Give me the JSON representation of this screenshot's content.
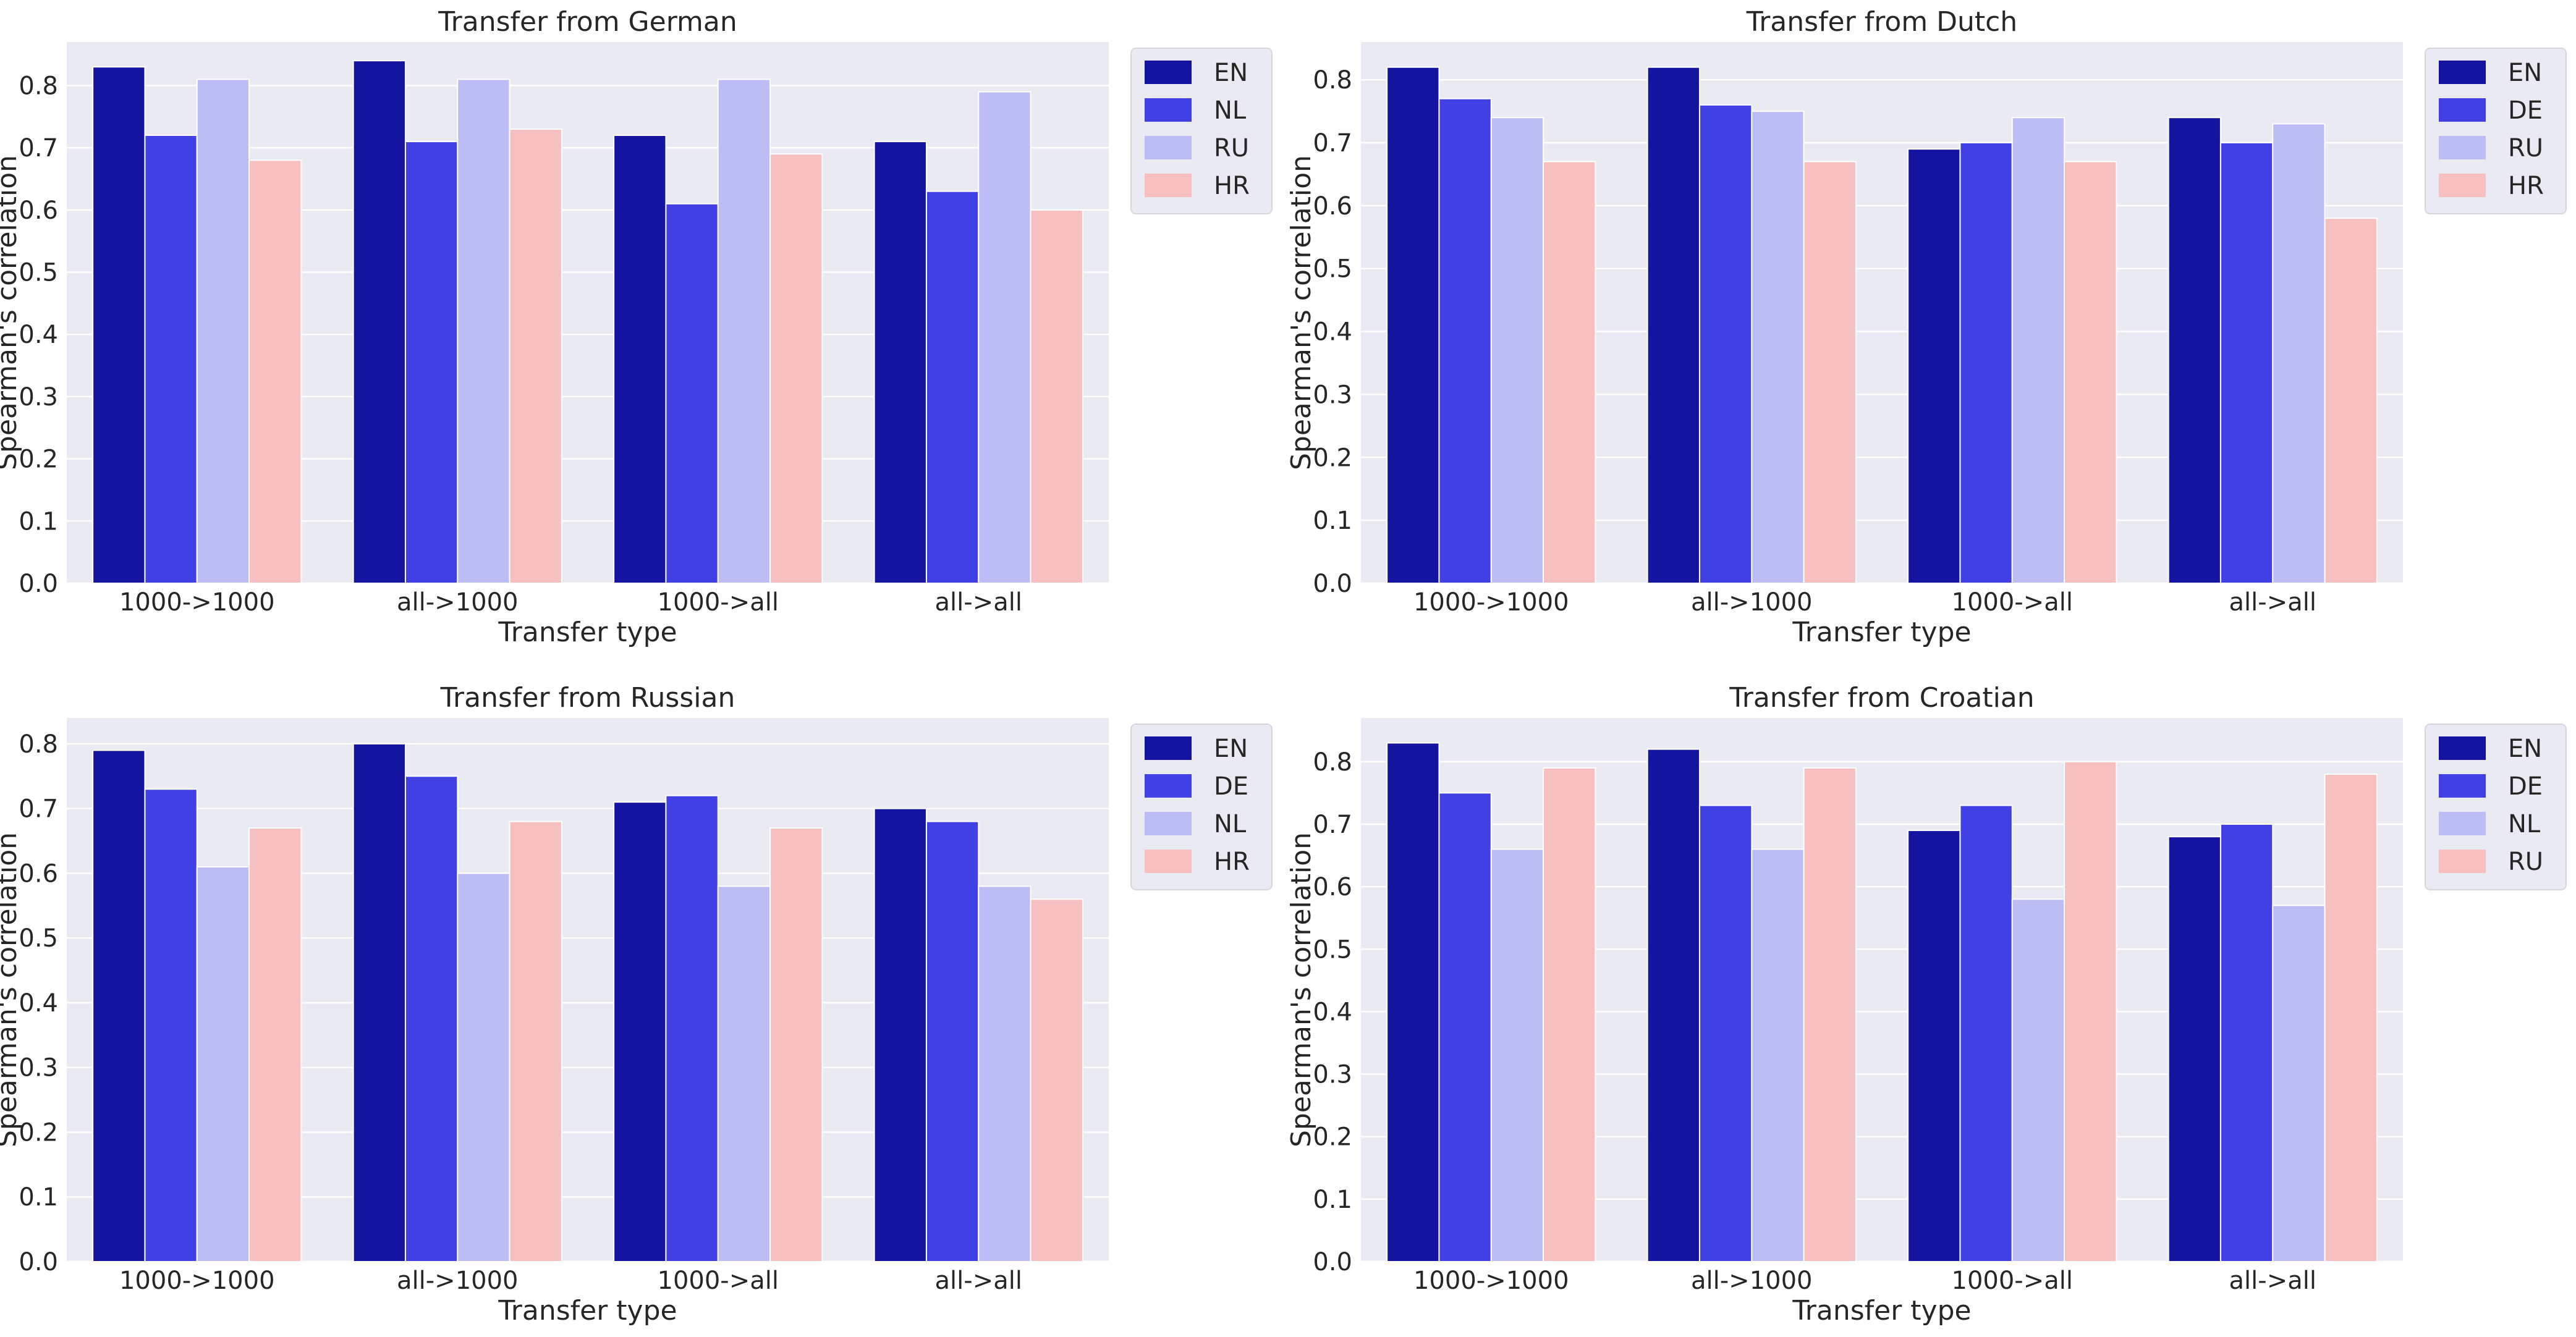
{
  "figure": {
    "colors": {
      "background": "#EAEAF2",
      "grid": "#FFFFFF",
      "series": [
        "#1414A0",
        "#4040E4",
        "#BDBDF6",
        "#F6BFC0"
      ]
    },
    "legend_placement": "outside-right"
  },
  "chart_data": [
    {
      "type": "bar",
      "title": "Transfer from German",
      "xlabel": "Transfer type",
      "ylabel": "Spearman's correlation",
      "categories": [
        "1000->1000",
        "all->1000",
        "1000->all",
        "all->all"
      ],
      "ylim": [
        0,
        0.87
      ],
      "yticks": [
        "0.0",
        "0.1",
        "0.2",
        "0.3",
        "0.4",
        "0.5",
        "0.6",
        "0.7",
        "0.8"
      ],
      "series": [
        {
          "name": "EN",
          "values": [
            0.83,
            0.84,
            0.72,
            0.71
          ]
        },
        {
          "name": "NL",
          "values": [
            0.72,
            0.71,
            0.61,
            0.63
          ]
        },
        {
          "name": "RU",
          "values": [
            0.81,
            0.81,
            0.81,
            0.79
          ]
        },
        {
          "name": "HR",
          "values": [
            0.68,
            0.73,
            0.69,
            0.6
          ]
        }
      ]
    },
    {
      "type": "bar",
      "title": "Transfer from Dutch",
      "xlabel": "Transfer type",
      "ylabel": "Spearman's correlation",
      "categories": [
        "1000->1000",
        "all->1000",
        "1000->all",
        "all->all"
      ],
      "ylim": [
        0,
        0.86
      ],
      "yticks": [
        "0.0",
        "0.1",
        "0.2",
        "0.3",
        "0.4",
        "0.5",
        "0.6",
        "0.7",
        "0.8"
      ],
      "series": [
        {
          "name": "EN",
          "values": [
            0.82,
            0.82,
            0.69,
            0.74
          ]
        },
        {
          "name": "DE",
          "values": [
            0.77,
            0.76,
            0.7,
            0.7
          ]
        },
        {
          "name": "RU",
          "values": [
            0.74,
            0.75,
            0.74,
            0.73
          ]
        },
        {
          "name": "HR",
          "values": [
            0.67,
            0.67,
            0.67,
            0.58
          ]
        }
      ]
    },
    {
      "type": "bar",
      "title": "Transfer from Russian",
      "xlabel": "Transfer type",
      "ylabel": "Spearman's correlation",
      "categories": [
        "1000->1000",
        "all->1000",
        "1000->all",
        "all->all"
      ],
      "ylim": [
        0,
        0.84
      ],
      "yticks": [
        "0.0",
        "0.1",
        "0.2",
        "0.3",
        "0.4",
        "0.5",
        "0.6",
        "0.7",
        "0.8"
      ],
      "series": [
        {
          "name": "EN",
          "values": [
            0.79,
            0.8,
            0.71,
            0.7
          ]
        },
        {
          "name": "DE",
          "values": [
            0.73,
            0.75,
            0.72,
            0.68
          ]
        },
        {
          "name": "NL",
          "values": [
            0.61,
            0.6,
            0.58,
            0.58
          ]
        },
        {
          "name": "HR",
          "values": [
            0.67,
            0.68,
            0.67,
            0.56
          ]
        }
      ]
    },
    {
      "type": "bar",
      "title": "Transfer from Croatian",
      "xlabel": "Transfer type",
      "ylabel": "Spearman's correlation",
      "categories": [
        "1000->1000",
        "all->1000",
        "1000->all",
        "all->all"
      ],
      "ylim": [
        0,
        0.87
      ],
      "yticks": [
        "0.0",
        "0.1",
        "0.2",
        "0.3",
        "0.4",
        "0.5",
        "0.6",
        "0.7",
        "0.8"
      ],
      "series": [
        {
          "name": "EN",
          "values": [
            0.83,
            0.82,
            0.69,
            0.68
          ]
        },
        {
          "name": "DE",
          "values": [
            0.75,
            0.73,
            0.73,
            0.7
          ]
        },
        {
          "name": "NL",
          "values": [
            0.66,
            0.66,
            0.58,
            0.57
          ]
        },
        {
          "name": "RU",
          "values": [
            0.79,
            0.79,
            0.8,
            0.78
          ]
        }
      ]
    }
  ]
}
